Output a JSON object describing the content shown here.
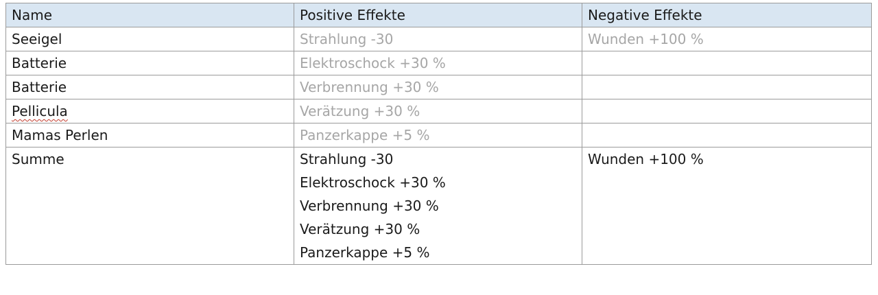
{
  "table": {
    "headers": [
      "Name",
      "Positive Effekte",
      "Negative Effekte"
    ],
    "rows": [
      {
        "name": "Seeigel",
        "positive": "Strahlung -30",
        "negative": "Wunden +100 %"
      },
      {
        "name": "Batterie",
        "positive": "Elektroschock +30 %",
        "negative": ""
      },
      {
        "name": "Batterie",
        "positive": "Verbrennung +30 %",
        "negative": ""
      },
      {
        "name": "Pellicula",
        "positive": "Verätzung +30 %",
        "negative": ""
      },
      {
        "name": "Mamas Perlen",
        "positive": "Panzerkappe +5 %",
        "negative": ""
      }
    ],
    "summary": {
      "name": "Summe",
      "positive": [
        "Strahlung -30",
        "Elektroschock +30 %",
        "Verbrennung +30 %",
        "Verätzung +30 %",
        "Panzerkappe +5 %"
      ],
      "negative": "Wunden +100 %"
    }
  },
  "colors": {
    "header_background": "#d9e6f2",
    "muted_text": "#a6a6a6",
    "border": "#9a9a9a",
    "spellcheck_underline": "#c0392b"
  }
}
